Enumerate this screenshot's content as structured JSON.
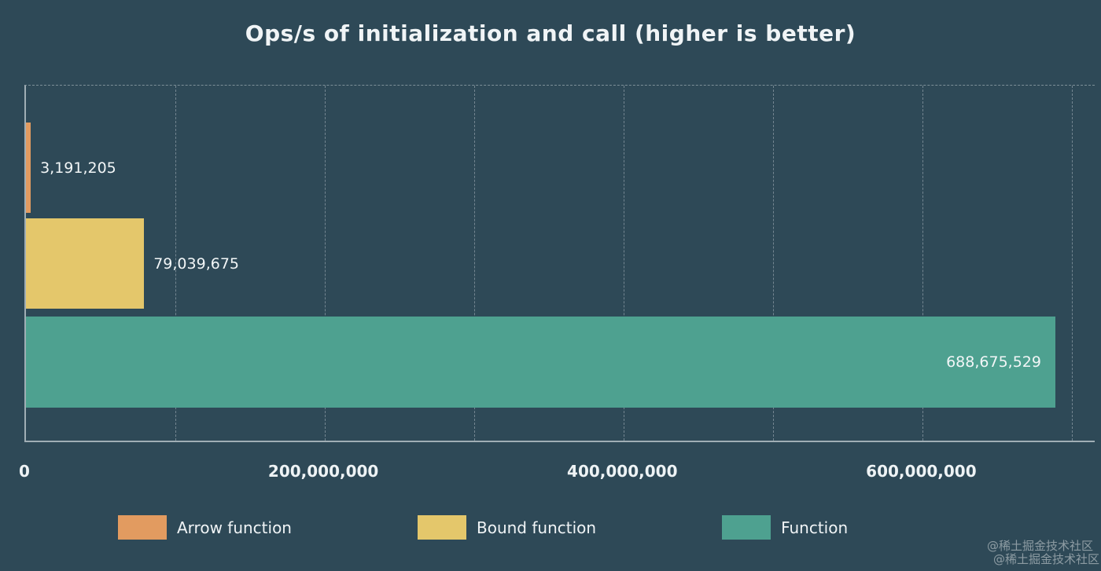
{
  "chart_data": {
    "type": "bar",
    "orientation": "horizontal",
    "title": "Ops/s of initialization and call (higher is better)",
    "categories": [
      "Arrow function",
      "Bound function",
      "Function"
    ],
    "values": [
      3191205,
      79039675,
      688675529
    ],
    "value_labels": [
      "3,191,205",
      "79,039,675",
      "688,675,529"
    ],
    "colors": [
      "#e29b60",
      "#e4c76b",
      "#4ea190"
    ],
    "label_inside": [
      false,
      false,
      true
    ],
    "xlabel": "",
    "ylabel": "",
    "xlim": [
      0,
      715000000
    ],
    "grid_interval": 100000000,
    "grid_style": "dashed-vertical",
    "x_ticks": [
      {
        "value": 0,
        "label": "0"
      },
      {
        "value": 200000000,
        "label": "200,000,000"
      },
      {
        "value": 400000000,
        "label": "400,000,000"
      },
      {
        "value": 600000000,
        "label": "600,000,000"
      }
    ],
    "legend_position": "bottom",
    "background_color": "#2e4957"
  },
  "watermark": {
    "lines": [
      "@稀土掘金技术社区",
      "@稀土掘金技术社区"
    ]
  }
}
